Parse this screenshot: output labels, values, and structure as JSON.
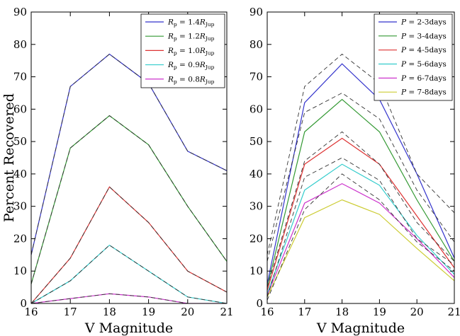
{
  "chart_data": [
    {
      "type": "line",
      "xlabel": "V Magnitude",
      "ylabel": "Percent Recovered",
      "xlim": [
        16,
        21
      ],
      "ylim": [
        0,
        90
      ],
      "x": [
        16,
        17,
        18,
        19,
        20,
        21
      ],
      "xticks": [
        "16",
        "17",
        "18",
        "19",
        "20",
        "21"
      ],
      "yticks": [
        "0",
        "10",
        "20",
        "30",
        "40",
        "50",
        "60",
        "70",
        "80",
        "90"
      ],
      "grid": false,
      "legend_position": "top-right",
      "series": [
        {
          "name": "Rp = 1.4RJup",
          "legend": {
            "sym": "R",
            "sub": "p",
            "val": " = 1.4",
            "unit": "R",
            "unitSub": "Jup"
          },
          "color": "#3333cc",
          "values": [
            15,
            67,
            77,
            68,
            47,
            41
          ]
        },
        {
          "name": "Rp = 1.2RJup",
          "legend": {
            "sym": "R",
            "sub": "p",
            "val": " = 1.2",
            "unit": "R",
            "unitSub": "Jup"
          },
          "color": "#339933",
          "values": [
            6,
            48,
            58,
            49,
            30,
            13
          ]
        },
        {
          "name": "Rp = 1.0RJup",
          "legend": {
            "sym": "R",
            "sub": "p",
            "val": " = 1.0",
            "unit": "R",
            "unitSub": "Jup"
          },
          "color": "#dd3333",
          "values": [
            0,
            14,
            36,
            25,
            10,
            3.5
          ]
        },
        {
          "name": "Rp = 0.9RJup",
          "legend": {
            "sym": "R",
            "sub": "p",
            "val": " = 0.9",
            "unit": "R",
            "unitSub": "Jup"
          },
          "color": "#33cccc",
          "values": [
            0,
            7,
            18,
            10,
            2,
            0
          ]
        },
        {
          "name": "Rp = 0.8RJup",
          "legend": {
            "sym": "R",
            "sub": "p",
            "val": " = 0.8",
            "unit": "R",
            "unitSub": "Jup"
          },
          "color": "#cc33cc",
          "values": [
            0,
            1.5,
            3,
            2,
            0,
            0
          ]
        }
      ],
      "dashed_overlay": {
        "color": "#333333",
        "series": [
          [
            15,
            67,
            77,
            68,
            47,
            41
          ],
          [
            6,
            48,
            58,
            49,
            30,
            13
          ],
          [
            0,
            14,
            36,
            25,
            10,
            3.5
          ],
          [
            0,
            7,
            18,
            10,
            2,
            0
          ],
          [
            0,
            1.5,
            3,
            2,
            0,
            0
          ]
        ]
      }
    },
    {
      "type": "line",
      "xlabel": "V Magnitude",
      "ylabel": "",
      "xlim": [
        16,
        21
      ],
      "ylim": [
        0,
        90
      ],
      "x": [
        16,
        17,
        18,
        19,
        20,
        21
      ],
      "xticks": [
        "16",
        "17",
        "18",
        "19",
        "20",
        "21"
      ],
      "yticks": [
        "0",
        "10",
        "20",
        "30",
        "40",
        "50",
        "60",
        "70",
        "80",
        "90"
      ],
      "grid": false,
      "legend_position": "top-right",
      "series": [
        {
          "name": "P = 2-3days",
          "legend": {
            "sym": "P",
            "val": " = 2-3days"
          },
          "color": "#3333cc",
          "values": [
            6,
            62,
            74,
            63,
            40,
            14
          ]
        },
        {
          "name": "P = 3-4days",
          "legend": {
            "sym": "P",
            "val": " = 3-4days"
          },
          "color": "#339933",
          "values": [
            5,
            53,
            63,
            53,
            32,
            13
          ]
        },
        {
          "name": "P = 4-5days",
          "legend": {
            "sym": "P",
            "val": " = 4-5days"
          },
          "color": "#dd3333",
          "values": [
            4,
            43,
            51,
            43,
            27,
            11
          ]
        },
        {
          "name": "P = 5-6days",
          "legend": {
            "sym": "P",
            "val": " = 5-6days"
          },
          "color": "#33cccc",
          "values": [
            3,
            35,
            43,
            36.5,
            21,
            9
          ]
        },
        {
          "name": "P = 6-7days",
          "legend": {
            "sym": "P",
            "val": " = 6-7days"
          },
          "color": "#cc33cc",
          "values": [
            2.5,
            31,
            37,
            31,
            20,
            8
          ]
        },
        {
          "name": "P = 7-8days",
          "legend": {
            "sym": "P",
            "val": " = 7-8days"
          },
          "color": "#cccc33",
          "values": [
            2,
            26.5,
            32,
            27.5,
            17,
            7
          ]
        }
      ],
      "dashed_overlay": {
        "color": "#333333",
        "series": [
          [
            15,
            67,
            77,
            68,
            40,
            28
          ],
          [
            13,
            59,
            65,
            57,
            35,
            19
          ],
          [
            5,
            44,
            53,
            43,
            25,
            13
          ],
          [
            2,
            39,
            45,
            38,
            20,
            12
          ],
          [
            1,
            29,
            40,
            32,
            19,
            10
          ]
        ]
      }
    }
  ]
}
